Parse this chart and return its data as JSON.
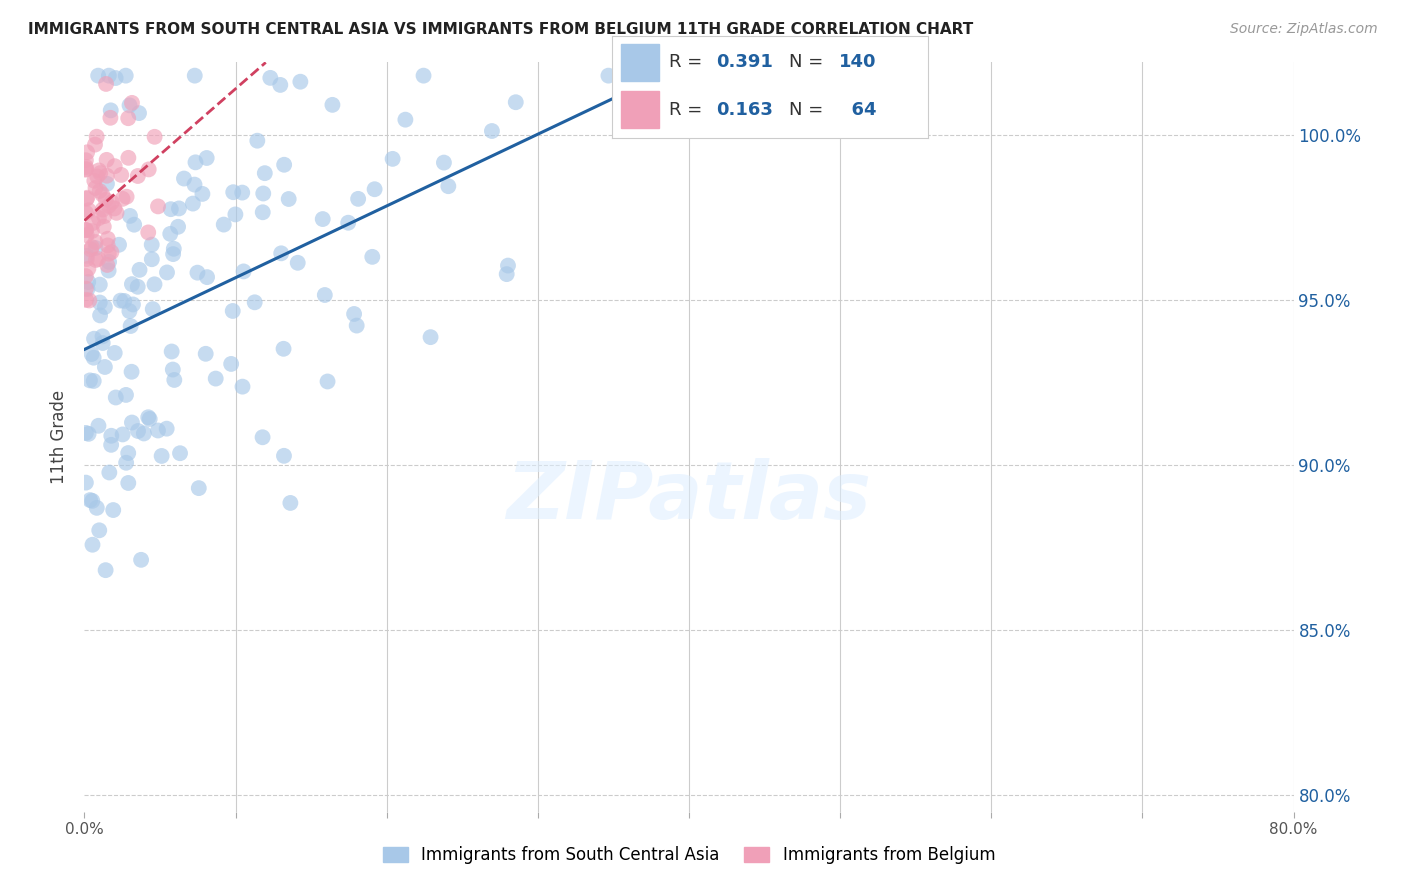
{
  "title": "IMMIGRANTS FROM SOUTH CENTRAL ASIA VS IMMIGRANTS FROM BELGIUM 11TH GRADE CORRELATION CHART",
  "source_text": "Source: ZipAtlas.com",
  "ylabel": "11th Grade",
  "xlim": [
    0.0,
    0.8
  ],
  "ylim": [
    0.795,
    1.022
  ],
  "xticks": [
    0.0,
    0.1,
    0.2,
    0.3,
    0.4,
    0.5,
    0.6,
    0.7,
    0.8
  ],
  "ytick_positions": [
    0.8,
    0.85,
    0.9,
    0.95,
    1.0
  ],
  "yticklabels": [
    "80.0%",
    "85.0%",
    "90.0%",
    "95.0%",
    "100.0%"
  ],
  "blue_color": "#a8c8e8",
  "pink_color": "#f0a0b8",
  "blue_line_color": "#2060a0",
  "pink_line_color": "#d04060",
  "R_blue": 0.391,
  "N_blue": 140,
  "R_pink": 0.163,
  "N_pink": 64,
  "watermark": "ZIPatlas",
  "seed": 42
}
